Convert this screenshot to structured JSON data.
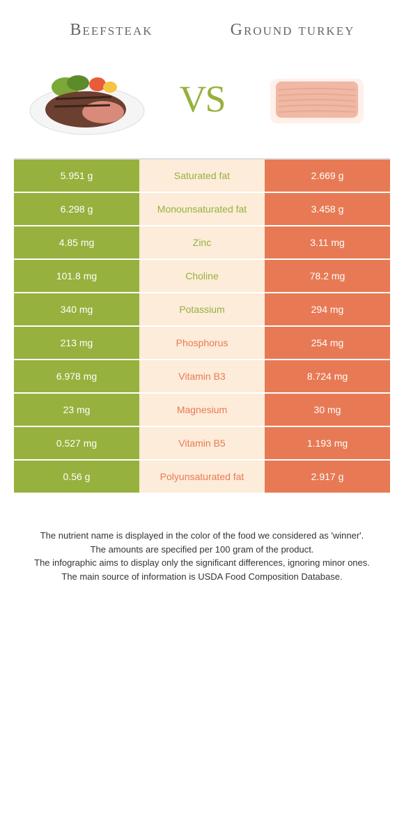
{
  "header": {
    "left_title": "Beefsteak",
    "right_title": "Ground turkey",
    "vs_label": "VS"
  },
  "colors": {
    "left_bg": "#96b13d",
    "mid_bg": "#fdecd9",
    "right_bg": "#e77a54",
    "left_text": "#ffffff",
    "right_text": "#ffffff",
    "mid_left_color": "#96b13d",
    "mid_right_color": "#e77a54"
  },
  "rows": [
    {
      "left": "5.951 g",
      "label": "Saturated fat",
      "right": "2.669 g",
      "winner": "left"
    },
    {
      "left": "6.298 g",
      "label": "Monounsaturated fat",
      "right": "3.458 g",
      "winner": "left"
    },
    {
      "left": "4.85 mg",
      "label": "Zinc",
      "right": "3.11 mg",
      "winner": "left"
    },
    {
      "left": "101.8 mg",
      "label": "Choline",
      "right": "78.2 mg",
      "winner": "left"
    },
    {
      "left": "340 mg",
      "label": "Potassium",
      "right": "294 mg",
      "winner": "left"
    },
    {
      "left": "213 mg",
      "label": "Phosphorus",
      "right": "254 mg",
      "winner": "right"
    },
    {
      "left": "6.978 mg",
      "label": "Vitamin B3",
      "right": "8.724 mg",
      "winner": "right"
    },
    {
      "left": "23 mg",
      "label": "Magnesium",
      "right": "30 mg",
      "winner": "right"
    },
    {
      "left": "0.527 mg",
      "label": "Vitamin B5",
      "right": "1.193 mg",
      "winner": "right"
    },
    {
      "left": "0.56 g",
      "label": "Polyunsaturated fat",
      "right": "2.917 g",
      "winner": "right"
    }
  ],
  "footer": {
    "line1": "The nutrient name is displayed in the color of the food we considered as 'winner'.",
    "line2": "The amounts are specified per 100 gram of the product.",
    "line3": "The infographic aims to display only the significant differences, ignoring minor ones.",
    "line4": "The main source of information is USDA Food Composition Database."
  }
}
